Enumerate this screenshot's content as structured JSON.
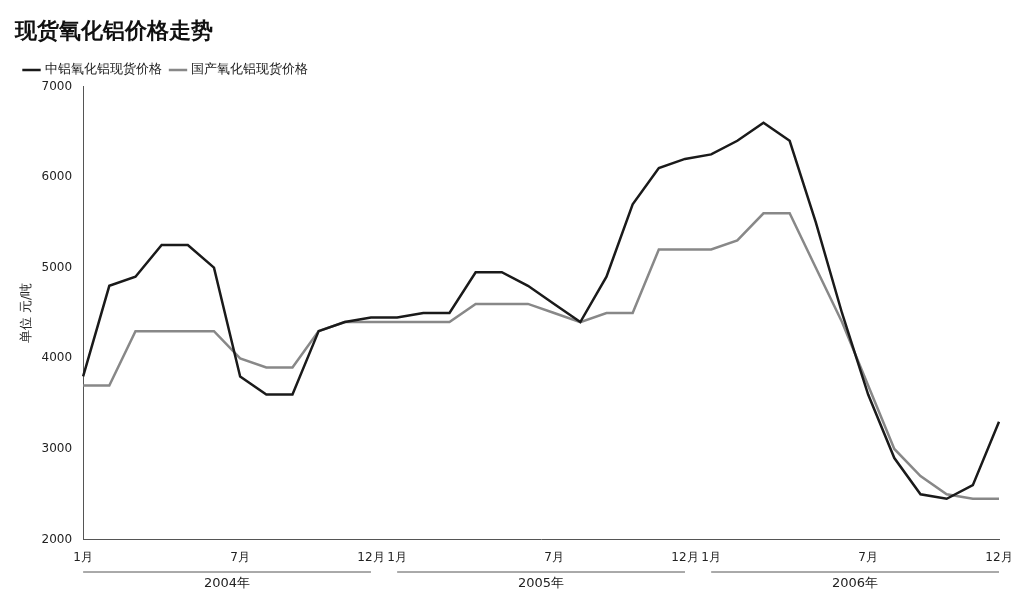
{
  "chart_data": {
    "type": "line",
    "title": "现货氧化铝价格走势",
    "y_label": "单位 元/吨",
    "categories": [
      "1月",
      null,
      null,
      null,
      null,
      null,
      "7月",
      null,
      null,
      null,
      null,
      "12月",
      "1月",
      null,
      null,
      null,
      null,
      null,
      "7月",
      null,
      null,
      null,
      null,
      "12月",
      "1月",
      null,
      null,
      null,
      null,
      null,
      "7月",
      null,
      null,
      null,
      null,
      "12月"
    ],
    "x_groups": [
      {
        "label": "2004年",
        "start": 0,
        "end": 11
      },
      {
        "label": "2005年",
        "start": 12,
        "end": 23
      },
      {
        "label": "2006年",
        "start": 24,
        "end": 35
      }
    ],
    "series": [
      {
        "name": "中铝氧化铝现货价格",
        "color": "#1a1a1a",
        "values": [
          3800,
          4800,
          4900,
          5250,
          5250,
          5000,
          3800,
          3600,
          3600,
          4300,
          4400,
          4450,
          4450,
          4500,
          4500,
          4950,
          4950,
          4800,
          4600,
          4400,
          4900,
          5700,
          6100,
          6200,
          6250,
          6400,
          6600,
          6400,
          5500,
          4500,
          3600,
          2900,
          2500,
          2450,
          2600,
          3300
        ]
      },
      {
        "name": "国产氧化铝现货价格",
        "color": "#888888",
        "values": [
          3700,
          3700,
          4300,
          4300,
          4300,
          4300,
          4000,
          3900,
          3900,
          4300,
          4400,
          4400,
          4400,
          4400,
          4400,
          4600,
          4600,
          4600,
          4500,
          4400,
          4500,
          4500,
          5200,
          5200,
          5200,
          5300,
          5600,
          5600,
          5000,
          4400,
          3700,
          3000,
          2700,
          2500,
          2450,
          2450
        ]
      }
    ],
    "ylim": [
      2000,
      7000
    ],
    "yticks": [
      2000,
      3000,
      4000,
      5000,
      6000,
      7000
    ],
    "grid": false,
    "legend": "top-left"
  }
}
